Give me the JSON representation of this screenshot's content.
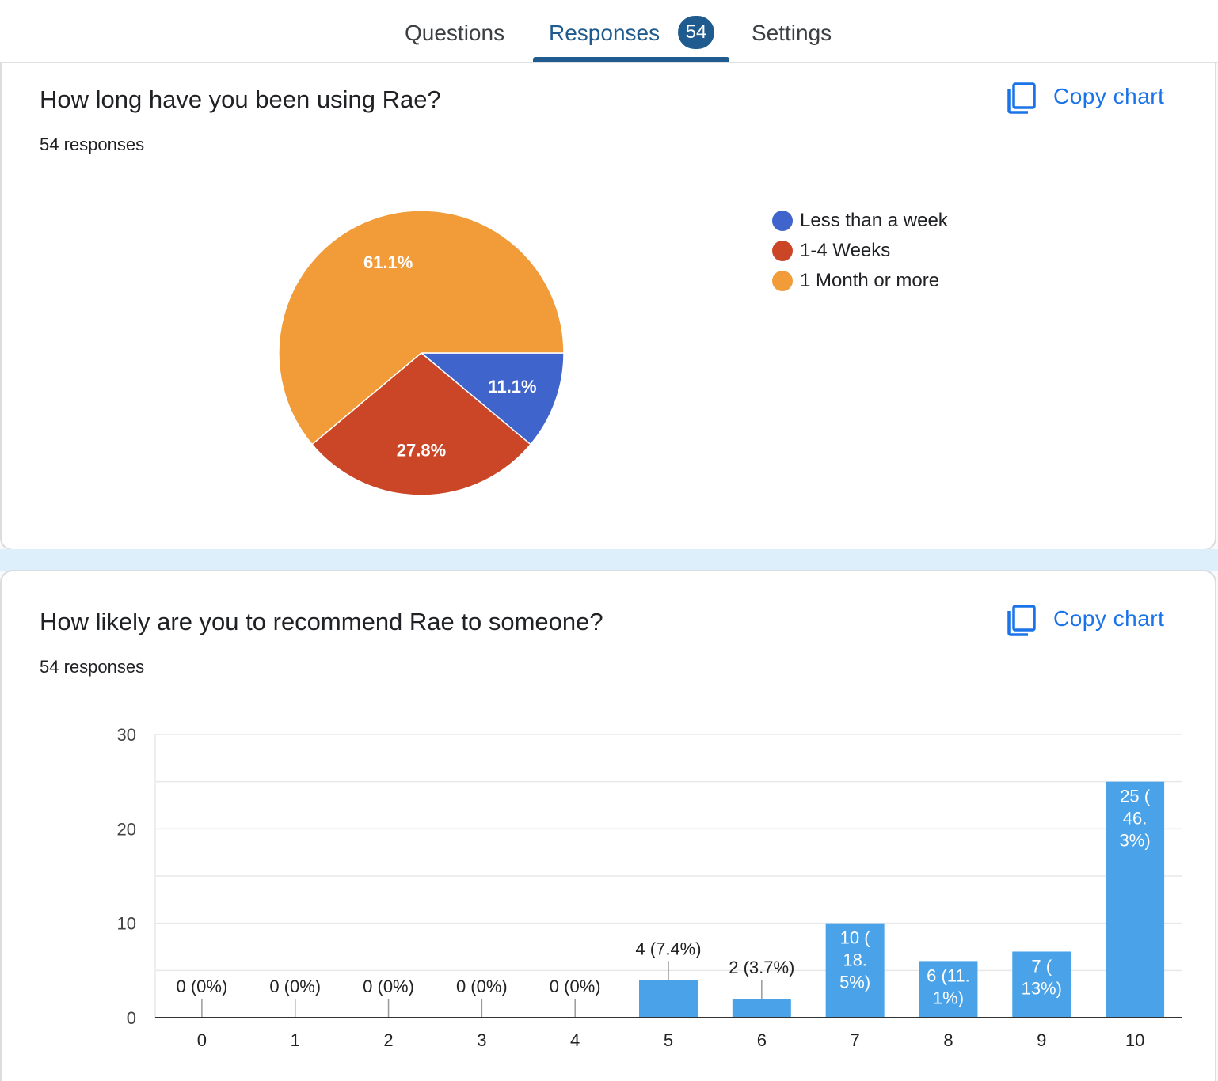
{
  "tabs": [
    {
      "label": "Questions"
    },
    {
      "label": "Responses",
      "badge": "54"
    },
    {
      "label": "Settings"
    }
  ],
  "copy_chart_label": "Copy chart",
  "questions": [
    {
      "title": "How long have you been using Rae?",
      "count": "54 responses"
    },
    {
      "title": "How likely are you to recommend Rae to someone?",
      "count": "54 responses"
    }
  ],
  "chart_data": [
    {
      "type": "pie",
      "labels": [
        "Less than a week",
        "1-4 Weeks",
        "1 Month or more"
      ],
      "values": [
        11.1,
        27.8,
        61.1
      ],
      "value_labels": [
        "11.1%",
        "27.8%",
        "61.1%"
      ],
      "colors": [
        "#3f64cb",
        "#cb4627",
        "#f19c38"
      ],
      "legend_position": "right"
    },
    {
      "type": "bar",
      "categories": [
        "0",
        "1",
        "2",
        "3",
        "4",
        "5",
        "6",
        "7",
        "8",
        "9",
        "10"
      ],
      "values": [
        0,
        0,
        0,
        0,
        0,
        4,
        2,
        10,
        6,
        7,
        25
      ],
      "data_labels": [
        [
          "0 (0%)"
        ],
        [
          "0 (0%)"
        ],
        [
          "0 (0%)"
        ],
        [
          "0 (0%)"
        ],
        [
          "0 (0%)"
        ],
        [
          "4 (7.4%)"
        ],
        [
          "2 (3.7%)"
        ],
        [
          "10 (",
          "18.",
          "5%)"
        ],
        [
          "6 (11.",
          "1%)"
        ],
        [
          "7 (",
          "13%)"
        ],
        [
          "25 (",
          "46.",
          "3%)"
        ]
      ],
      "ylim": [
        0,
        30
      ],
      "yticks": [
        0,
        10,
        20,
        30
      ],
      "color": "#4aa3e8",
      "grid": true
    }
  ]
}
